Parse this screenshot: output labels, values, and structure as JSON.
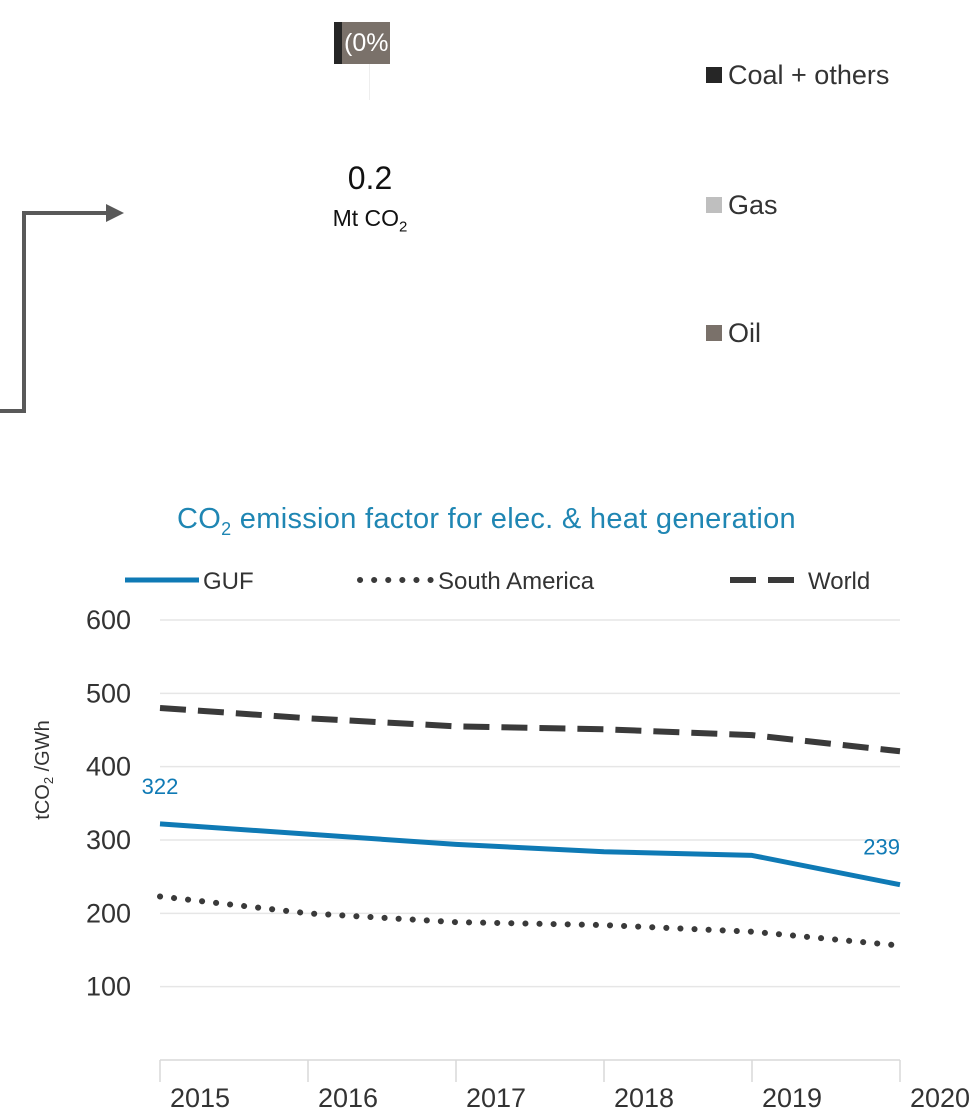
{
  "pie": {
    "visible_label": "(0%",
    "total_value": "0.2",
    "total_unit_prefix": "Mt CO",
    "total_unit_sub": "2",
    "colors": {
      "coal": "#262626",
      "gas": "#bfbfbf",
      "oil": "#7a716a"
    }
  },
  "legend_top": [
    {
      "label": "Coal + others",
      "color": "#262626"
    },
    {
      "label": "Gas",
      "color": "#bfbfbf"
    },
    {
      "label": "Oil",
      "color": "#7a716a"
    }
  ],
  "chart_data": {
    "type": "line",
    "title_prefix": "CO",
    "title_sub": "2",
    "title_rest": " emission factor for elec. & heat generation",
    "ylabel_prefix": "tCO",
    "ylabel_sub": "2",
    "ylabel_rest": " /GWh",
    "x": [
      "2015",
      "2016",
      "2017",
      "2018",
      "2019",
      "2020"
    ],
    "yticks": [
      "100",
      "200",
      "300",
      "400",
      "500",
      "600"
    ],
    "ylim": [
      0,
      600
    ],
    "grid": true,
    "legend_position": "top",
    "series": [
      {
        "name": "GUF",
        "style": "solid",
        "color": "#0f7ab5",
        "values": [
          322,
          308,
          294,
          284,
          279,
          239
        ]
      },
      {
        "name": "South America",
        "style": "dotted",
        "color": "#3a3a3a",
        "values": [
          223,
          200,
          188,
          184,
          175,
          156
        ]
      },
      {
        "name": "World",
        "style": "dashed",
        "color": "#3a3a3a",
        "values": [
          480,
          466,
          455,
          451,
          443,
          421
        ]
      }
    ],
    "data_labels": [
      {
        "series": "GUF",
        "index": 0,
        "text": "322"
      },
      {
        "series": "GUF",
        "index": 5,
        "text": "239"
      }
    ]
  }
}
